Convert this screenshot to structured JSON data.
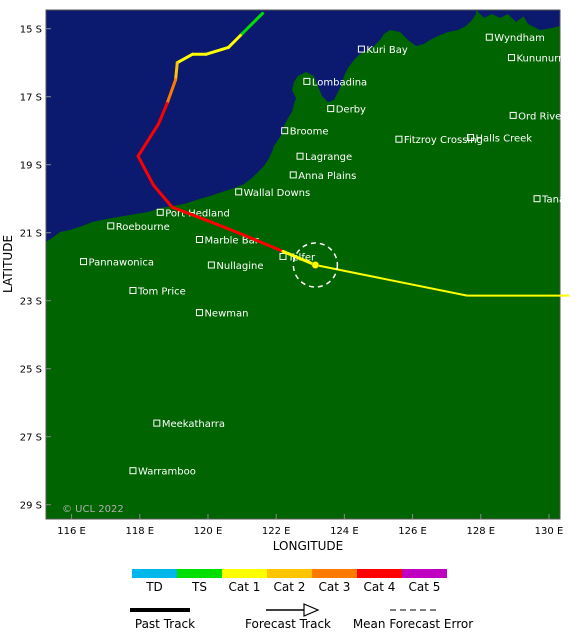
{
  "map": {
    "axis": {
      "xlabel": "LONGITUDE",
      "ylabel": "LATITUDE",
      "lon_ticks": [
        "116 E",
        "118 E",
        "120 E",
        "122 E",
        "124 E",
        "126 E",
        "128 E",
        "130 E"
      ],
      "lat_ticks": [
        "15 S",
        "17 S",
        "19 S",
        "21 S",
        "23 S",
        "25 S",
        "27 S",
        "29 S"
      ]
    },
    "copyright": "© UCL 2022",
    "colors": {
      "land": "#006400",
      "ocean": "#0b1a6e"
    },
    "places": [
      {
        "name": "Wyndham",
        "lon": 128.25,
        "lat": 15.25
      },
      {
        "name": "Kununurra",
        "lon": 128.9,
        "lat": 15.85
      },
      {
        "name": "Kuri Bay",
        "lon": 124.5,
        "lat": 15.6
      },
      {
        "name": "Lombadina",
        "lon": 122.9,
        "lat": 16.55
      },
      {
        "name": "Derby",
        "lon": 123.6,
        "lat": 17.35
      },
      {
        "name": "Ord River",
        "lon": 128.95,
        "lat": 17.55
      },
      {
        "name": "Broome",
        "lon": 122.25,
        "lat": 18.0
      },
      {
        "name": "Halls Creek",
        "lon": 127.7,
        "lat": 18.2
      },
      {
        "name": "Fitzroy Crossing",
        "lon": 125.6,
        "lat": 18.25
      },
      {
        "name": "Lagrange",
        "lon": 122.7,
        "lat": 18.75
      },
      {
        "name": "Anna Plains",
        "lon": 122.5,
        "lat": 19.3
      },
      {
        "name": "Wallal Downs",
        "lon": 120.9,
        "lat": 19.8
      },
      {
        "name": "Tanami",
        "lon": 129.65,
        "lat": 20.0
      },
      {
        "name": "Port Hedland",
        "lon": 118.6,
        "lat": 20.4
      },
      {
        "name": "Roebourne",
        "lon": 117.15,
        "lat": 20.8
      },
      {
        "name": "Marble Bar",
        "lon": 119.75,
        "lat": 21.2
      },
      {
        "name": "Telfer",
        "lon": 122.2,
        "lat": 21.7
      },
      {
        "name": "Pannawonica",
        "lon": 116.35,
        "lat": 21.85
      },
      {
        "name": "Nullagine",
        "lon": 120.1,
        "lat": 21.95
      },
      {
        "name": "Tom Price",
        "lon": 117.8,
        "lat": 22.7
      },
      {
        "name": "Newman",
        "lon": 119.75,
        "lat": 23.35
      },
      {
        "name": "Meekatharra",
        "lon": 118.5,
        "lat": 26.6
      },
      {
        "name": "Warramboo",
        "lon": 117.8,
        "lat": 28.0
      }
    ],
    "track": {
      "current": {
        "lon": 123.15,
        "lat": 21.95
      },
      "past": [
        {
          "lon": 121.6,
          "lat": 14.55,
          "cat": "TS"
        },
        {
          "lon": 120.95,
          "lat": 15.2,
          "cat": "TS"
        },
        {
          "lon": 120.6,
          "lat": 15.55,
          "cat": "Cat 1"
        },
        {
          "lon": 119.95,
          "lat": 15.75,
          "cat": "Cat 1"
        },
        {
          "lon": 119.55,
          "lat": 15.75,
          "cat": "Cat 1"
        },
        {
          "lon": 119.1,
          "lat": 16.0,
          "cat": "Cat 1"
        },
        {
          "lon": 119.05,
          "lat": 16.5,
          "cat": "Cat 2"
        },
        {
          "lon": 118.8,
          "lat": 17.2,
          "cat": "Cat 3"
        },
        {
          "lon": 118.55,
          "lat": 17.8,
          "cat": "Cat 4"
        },
        {
          "lon": 117.95,
          "lat": 18.75,
          "cat": "Cat 4"
        },
        {
          "lon": 118.4,
          "lat": 19.6,
          "cat": "Cat 4"
        },
        {
          "lon": 118.95,
          "lat": 20.25,
          "cat": "Cat 4"
        },
        {
          "lon": 120.0,
          "lat": 20.65,
          "cat": "Cat 4"
        },
        {
          "lon": 121.0,
          "lat": 21.05,
          "cat": "Cat 4"
        },
        {
          "lon": 122.2,
          "lat": 21.55,
          "cat": "Cat 4"
        },
        {
          "lon": 123.15,
          "lat": 21.95,
          "cat": "Cat 1"
        }
      ],
      "forecast": [
        {
          "lon": 123.15,
          "lat": 21.95,
          "cat": "Cat 1"
        },
        {
          "lon": 127.6,
          "lat": 22.85,
          "cat": "Cat 1"
        },
        {
          "lon": 130.6,
          "lat": 22.85,
          "cat": "TS"
        }
      ]
    }
  },
  "legend": {
    "categories": [
      {
        "label": "TD",
        "color": "#00b7eb"
      },
      {
        "label": "TS",
        "color": "#00e000"
      },
      {
        "label": "Cat 1",
        "color": "#ffff00"
      },
      {
        "label": "Cat 2",
        "color": "#ffc400"
      },
      {
        "label": "Cat 3",
        "color": "#ff7a00"
      },
      {
        "label": "Cat 4",
        "color": "#ff0000"
      },
      {
        "label": "Cat 5",
        "color": "#c000c0"
      }
    ],
    "past_track": "Past Track",
    "forecast_track": "Forecast Track",
    "mean_error": "Mean Forecast Error"
  }
}
